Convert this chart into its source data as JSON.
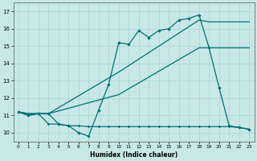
{
  "xlabel": "Humidex (Indice chaleur)",
  "bg_color": "#c8e8e8",
  "line_color": "#007070",
  "xlim": [
    -0.5,
    23.5
  ],
  "ylim": [
    9.5,
    17.5
  ],
  "xticks": [
    0,
    1,
    2,
    3,
    4,
    5,
    6,
    7,
    8,
    9,
    10,
    11,
    12,
    13,
    14,
    15,
    16,
    17,
    18,
    19,
    20,
    21,
    22,
    23
  ],
  "yticks": [
    10,
    11,
    12,
    13,
    14,
    15,
    16,
    17
  ],
  "zigzag_x": [
    0,
    1,
    2,
    3,
    4,
    5,
    6,
    7,
    8,
    9,
    10,
    11,
    12,
    13,
    14,
    15,
    16,
    17,
    18,
    19,
    20,
    21,
    22,
    23
  ],
  "zigzag_y": [
    11.2,
    11.0,
    11.1,
    11.1,
    10.5,
    10.4,
    10.0,
    9.8,
    11.3,
    12.8,
    15.2,
    15.1,
    15.9,
    15.5,
    15.9,
    16.0,
    16.5,
    16.6,
    16.8,
    14.9,
    12.6,
    10.4,
    10.3,
    10.2
  ],
  "line_top_x": [
    0,
    1,
    2,
    3,
    10,
    18,
    19,
    20,
    21,
    22,
    23
  ],
  "line_top_y": [
    11.2,
    11.1,
    11.1,
    11.1,
    13.5,
    16.5,
    16.4,
    16.4,
    16.4,
    16.4,
    16.4
  ],
  "line_bot_x": [
    0,
    1,
    2,
    3,
    10,
    18,
    19,
    20,
    21,
    22,
    23
  ],
  "line_bot_y": [
    11.2,
    11.1,
    11.1,
    11.1,
    12.2,
    14.9,
    14.9,
    14.9,
    14.9,
    14.9,
    14.9
  ],
  "flat_x": [
    0,
    1,
    2,
    3,
    4,
    5,
    6,
    7,
    8,
    9,
    10,
    11,
    12,
    13,
    14,
    15,
    16,
    17,
    18,
    19,
    20,
    21,
    22,
    23
  ],
  "flat_y": [
    11.2,
    11.0,
    11.1,
    10.5,
    10.5,
    10.4,
    10.4,
    10.35,
    10.35,
    10.35,
    10.35,
    10.35,
    10.35,
    10.35,
    10.35,
    10.35,
    10.35,
    10.35,
    10.35,
    10.35,
    10.35,
    10.35,
    10.3,
    10.2
  ]
}
